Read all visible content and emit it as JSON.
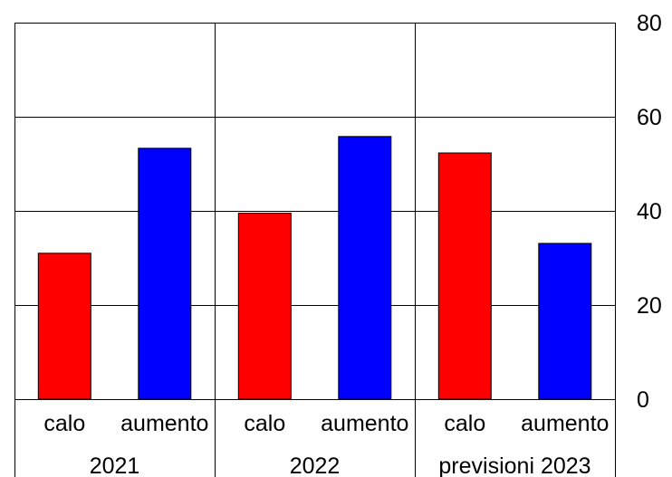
{
  "chart_data": {
    "type": "bar",
    "groups": [
      {
        "label": "2021",
        "bars": [
          {
            "label": "calo",
            "value": 31,
            "color": "#ff0000"
          },
          {
            "label": "aumento",
            "value": 53.3,
            "color": "#0000ff"
          }
        ]
      },
      {
        "label": "2022",
        "bars": [
          {
            "label": "calo",
            "value": 39.5,
            "color": "#ff0000"
          },
          {
            "label": "aumento",
            "value": 55.8,
            "color": "#0000ff"
          }
        ]
      },
      {
        "label": "previsioni 2023",
        "bars": [
          {
            "label": "calo",
            "value": 52.3,
            "color": "#ff0000"
          },
          {
            "label": "aumento",
            "value": 33.1,
            "color": "#0000ff"
          }
        ]
      }
    ],
    "y_ticks": [
      "0",
      "20",
      "40",
      "60",
      "80"
    ],
    "ylim": [
      0,
      80
    ],
    "y_axis_side": "right",
    "grid": true,
    "legend": "none"
  }
}
